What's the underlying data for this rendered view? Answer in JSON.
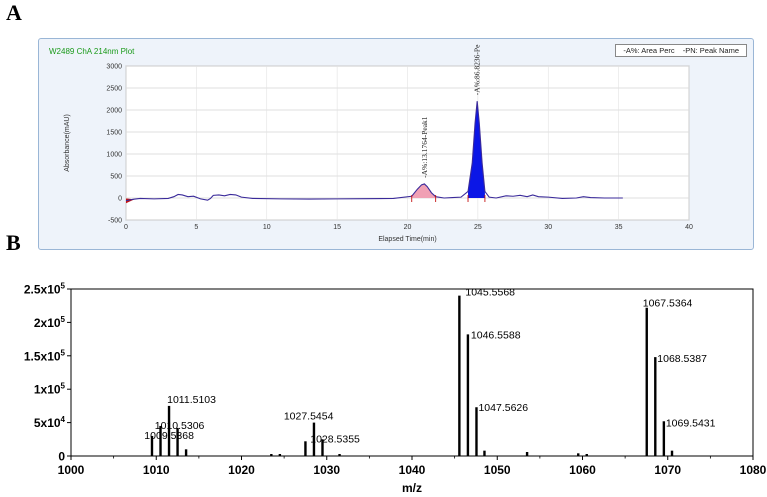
{
  "panels": {
    "a_label": "A",
    "b_label": "B"
  },
  "hplc": {
    "title": "W2489 ChA 214nm Plot",
    "legend": [
      "-A%: Area Perc",
      "-PN: Peak Name"
    ]
  },
  "ms": {},
  "chart_data": [
    {
      "type": "line",
      "title": "W2489 ChA 214nm Plot",
      "xlabel": "Elapsed Time(min)",
      "ylabel": "Absorbance(mAU)",
      "xlim": [
        0,
        40
      ],
      "ylim": [
        -500,
        3000
      ],
      "xticks": [
        0,
        5,
        10,
        15,
        20,
        25,
        30,
        35,
        40
      ],
      "yticks": [
        -500,
        0,
        500,
        1000,
        1500,
        2000,
        2500,
        3000
      ],
      "grid": true,
      "x": [
        0,
        0.5,
        1.0,
        2.0,
        3.0,
        3.4,
        3.7,
        4.0,
        4.4,
        4.8,
        5.3,
        5.8,
        6.0,
        6.2,
        6.6,
        7.0,
        7.4,
        7.8,
        8.2,
        9.0,
        11.0,
        13.0,
        15.0,
        17.0,
        19.0,
        20.3,
        20.7,
        21.0,
        21.2,
        21.4,
        21.7,
        22.0,
        22.6,
        23.2,
        23.8,
        24.3,
        24.6,
        24.8,
        24.95,
        25.1,
        25.3,
        25.5,
        25.8,
        26.3,
        27.0,
        27.5,
        28.0,
        28.5,
        28.9,
        29.3,
        30.0,
        31.0,
        32.0,
        32.5,
        33.0,
        34.0,
        35.3
      ],
      "y": [
        -60,
        -30,
        -10,
        -20,
        -10,
        30,
        80,
        70,
        30,
        40,
        -20,
        -50,
        -10,
        60,
        70,
        50,
        80,
        70,
        20,
        -10,
        -20,
        -25,
        -20,
        -15,
        -10,
        40,
        200,
        300,
        320,
        260,
        120,
        30,
        0,
        10,
        20,
        150,
        800,
        1700,
        2200,
        1700,
        800,
        150,
        20,
        0,
        50,
        40,
        60,
        30,
        70,
        30,
        20,
        -10,
        0,
        30,
        10,
        0,
        0
      ],
      "annotations": [
        {
          "x": 21.2,
          "y": 320,
          "label": "-A%:13.1764-Peak1"
        },
        {
          "x": 24.95,
          "y": 2200,
          "label": "-A%:86.8236-Pe"
        }
      ]
    },
    {
      "type": "bar",
      "xlabel": "m/z",
      "ylabel": "",
      "xlim": [
        1000,
        1080
      ],
      "ylim": [
        0,
        250000
      ],
      "xticks": [
        1000,
        1010,
        1020,
        1030,
        1040,
        1050,
        1060,
        1070,
        1080
      ],
      "yticks": [
        0,
        50000,
        100000,
        150000,
        200000,
        250000
      ],
      "ytick_labels": [
        "0",
        "5x10^4",
        "1x10^5",
        "1.5x10^5",
        "2x10^5",
        "2.5x10^5"
      ],
      "x": [
        1009.5,
        1010.5,
        1011.5,
        1012.5,
        1013.5,
        1023.5,
        1024.5,
        1027.5,
        1028.5,
        1029.5,
        1031.5,
        1045.5568,
        1046.5588,
        1047.5626,
        1048.5,
        1053.5,
        1059.5,
        1060.5,
        1067.5364,
        1068.5387,
        1069.5431,
        1070.5
      ],
      "values": [
        30000,
        45000,
        75000,
        42000,
        10000,
        3000,
        3000,
        22000,
        50000,
        25000,
        3000,
        240000,
        182000,
        73000,
        8000,
        6000,
        4000,
        3000,
        222000,
        148000,
        52000,
        8000
      ],
      "data_labels": [
        {
          "x": 1011.5103,
          "y": 75000,
          "label": "1011.5103"
        },
        {
          "x": 1010.5306,
          "y": 45000,
          "label": "1010.5306"
        },
        {
          "x": 1009.5368,
          "y": 30000,
          "label": "1009.5368"
        },
        {
          "x": 1027.5454,
          "y": 50000,
          "label": "1027.5454"
        },
        {
          "x": 1028.5355,
          "y": 25000,
          "label": "1028.5355"
        },
        {
          "x": 1045.5568,
          "y": 240000,
          "label": "1045.5568"
        },
        {
          "x": 1046.5588,
          "y": 182000,
          "label": "1046.5588"
        },
        {
          "x": 1047.5626,
          "y": 73000,
          "label": "1047.5626"
        },
        {
          "x": 1067.5364,
          "y": 222000,
          "label": "1067.5364"
        },
        {
          "x": 1068.5387,
          "y": 148000,
          "label": "1068.5387"
        },
        {
          "x": 1069.5431,
          "y": 52000,
          "label": "1069.5431"
        }
      ]
    }
  ]
}
